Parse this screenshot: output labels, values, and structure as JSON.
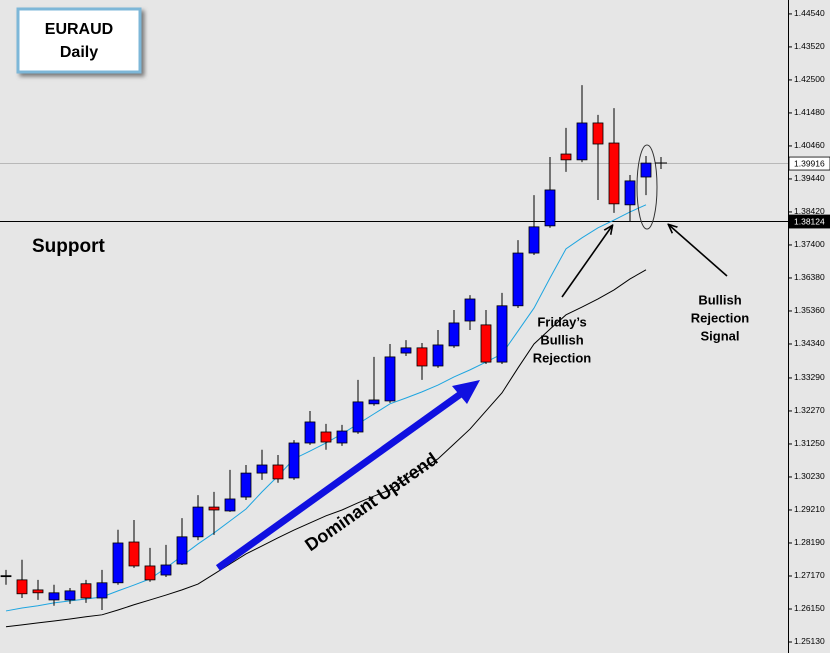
{
  "chart_data": {
    "type": "candlestick",
    "title": "EURAUD",
    "subtitle": "Daily",
    "support_label": "Support",
    "trend_label": "Dominant Uptrend",
    "callouts": [
      {
        "lines": [
          "Friday’s",
          "Bullish",
          "Rejection"
        ]
      },
      {
        "lines": [
          "Bullish",
          "Rejection",
          "Signal"
        ]
      }
    ],
    "up_color": "#0000ff",
    "down_color": "#ff0000",
    "open": [
      1.2718,
      1.2705,
      1.2674,
      1.2643,
      1.2643,
      1.2693,
      1.2649,
      1.2696,
      1.2822,
      1.2748,
      1.272,
      1.2754,
      1.2838,
      1.293,
      1.2918,
      1.2961,
      1.3035,
      1.306,
      1.302,
      1.3128,
      1.3162,
      1.3128,
      1.3162,
      1.3249,
      1.3258,
      1.3406,
      1.3422,
      1.3366,
      1.3428,
      1.3505,
      1.3493,
      1.3378,
      1.3552,
      1.3715,
      1.3799,
      1.4021,
      1.4003,
      1.4117,
      1.4055,
      1.3864,
      1.395
    ],
    "high": [
      1.2736,
      1.2767,
      1.2705,
      1.269,
      1.268,
      1.2705,
      1.2736,
      1.286,
      1.289,
      1.2804,
      1.2813,
      1.2896,
      1.2967,
      1.2977,
      1.3045,
      1.306,
      1.3107,
      1.3091,
      1.3137,
      1.3227,
      1.3187,
      1.3184,
      1.3323,
      1.3394,
      1.3434,
      1.3446,
      1.3437,
      1.3477,
      1.3539,
      1.3585,
      1.3539,
      1.3592,
      1.3755,
      1.3894,
      1.4012,
      1.4102,
      1.4234,
      1.4142,
      1.4163,
      1.3956,
      1.4015
    ],
    "low": [
      1.269,
      1.2649,
      1.2643,
      1.2625,
      1.2631,
      1.2634,
      1.2612,
      1.269,
      1.2742,
      1.2699,
      1.2714,
      1.2751,
      1.2828,
      1.2844,
      1.2915,
      1.2952,
      1.3014,
      1.3005,
      1.3014,
      1.3122,
      1.3107,
      1.3119,
      1.3156,
      1.3243,
      1.3252,
      1.3397,
      1.3323,
      1.336,
      1.3422,
      1.3477,
      1.3372,
      1.3372,
      1.3545,
      1.3709,
      1.3793,
      1.3966,
      1.3996,
      1.3879,
      1.3839,
      1.3811,
      1.3894
    ],
    "close": [
      1.2718,
      1.2662,
      1.2665,
      1.2665,
      1.2671,
      1.2649,
      1.2696,
      1.2819,
      1.2748,
      1.2705,
      1.2751,
      1.2838,
      1.293,
      1.2921,
      1.2955,
      1.3035,
      1.306,
      1.3017,
      1.3128,
      1.3193,
      1.3131,
      1.3165,
      1.3255,
      1.3261,
      1.3394,
      1.3422,
      1.3366,
      1.3431,
      1.3499,
      1.3573,
      1.3378,
      1.3552,
      1.3715,
      1.3796,
      1.391,
      1.4003,
      1.4117,
      1.4052,
      1.3867,
      1.3938,
      1.3993
    ],
    "overlays": [
      {
        "color": "#1ea5e0",
        "values": [
          1.2609,
          1.2618,
          1.2625,
          1.2634,
          1.264,
          1.2646,
          1.2652,
          1.2671,
          1.2689,
          1.2708,
          1.2742,
          1.2779,
          1.2816,
          1.285,
          1.2887,
          1.2924,
          1.2977,
          1.3026,
          1.3079,
          1.3103,
          1.3128,
          1.3156,
          1.3187,
          1.3218,
          1.3249,
          1.3267,
          1.3286,
          1.3307,
          1.3332,
          1.3354,
          1.3378,
          1.3403,
          1.3474,
          1.3545,
          1.3638,
          1.3728,
          1.3762,
          1.3793,
          1.3817,
          1.3842,
          1.3864
        ]
      },
      {
        "color": "#000000",
        "values": [
          1.256,
          1.2566,
          1.2572,
          1.2578,
          1.2584,
          1.2591,
          1.2597,
          1.2612,
          1.2628,
          1.2643,
          1.2658,
          1.2674,
          1.2692,
          1.2723,
          1.2754,
          1.2785,
          1.281,
          1.2835,
          1.2859,
          1.2881,
          1.2903,
          1.2921,
          1.2943,
          1.2964,
          1.2983,
          1.3017,
          1.3048,
          1.3079,
          1.3125,
          1.3171,
          1.3227,
          1.3283,
          1.336,
          1.3434,
          1.348,
          1.3524,
          1.3548,
          1.3573,
          1.3601,
          1.3635,
          1.3663
        ]
      }
    ],
    "support_level": 1.38124,
    "current_price": 1.39916,
    "ylim": [
      1.2479,
      1.4497
    ],
    "yticks": [
      {
        "value": 1.4454,
        "label": "1.44540"
      },
      {
        "value": 1.4352,
        "label": "1.43520"
      },
      {
        "value": 1.425,
        "label": "1.42500"
      },
      {
        "value": 1.4148,
        "label": "1.41480"
      },
      {
        "value": 1.4046,
        "label": "1.40460"
      },
      {
        "value": 1.3944,
        "label": "1.39440"
      },
      {
        "value": 1.3842,
        "label": "1.38420"
      },
      {
        "value": 1.374,
        "label": "1.37400"
      },
      {
        "value": 1.3638,
        "label": "1.36380"
      },
      {
        "value": 1.3536,
        "label": "1.35360"
      },
      {
        "value": 1.3434,
        "label": "1.34340"
      },
      {
        "value": 1.3329,
        "label": "1.33290"
      },
      {
        "value": 1.3227,
        "label": "1.32270"
      },
      {
        "value": 1.3125,
        "label": "1.31250"
      },
      {
        "value": 1.3023,
        "label": "1.30230"
      },
      {
        "value": 1.2921,
        "label": "1.29210"
      },
      {
        "value": 1.2819,
        "label": "1.28190"
      },
      {
        "value": 1.2717,
        "label": "1.27170"
      },
      {
        "value": 1.2615,
        "label": "1.26150"
      },
      {
        "value": 1.2513,
        "label": "1.25130"
      }
    ]
  }
}
